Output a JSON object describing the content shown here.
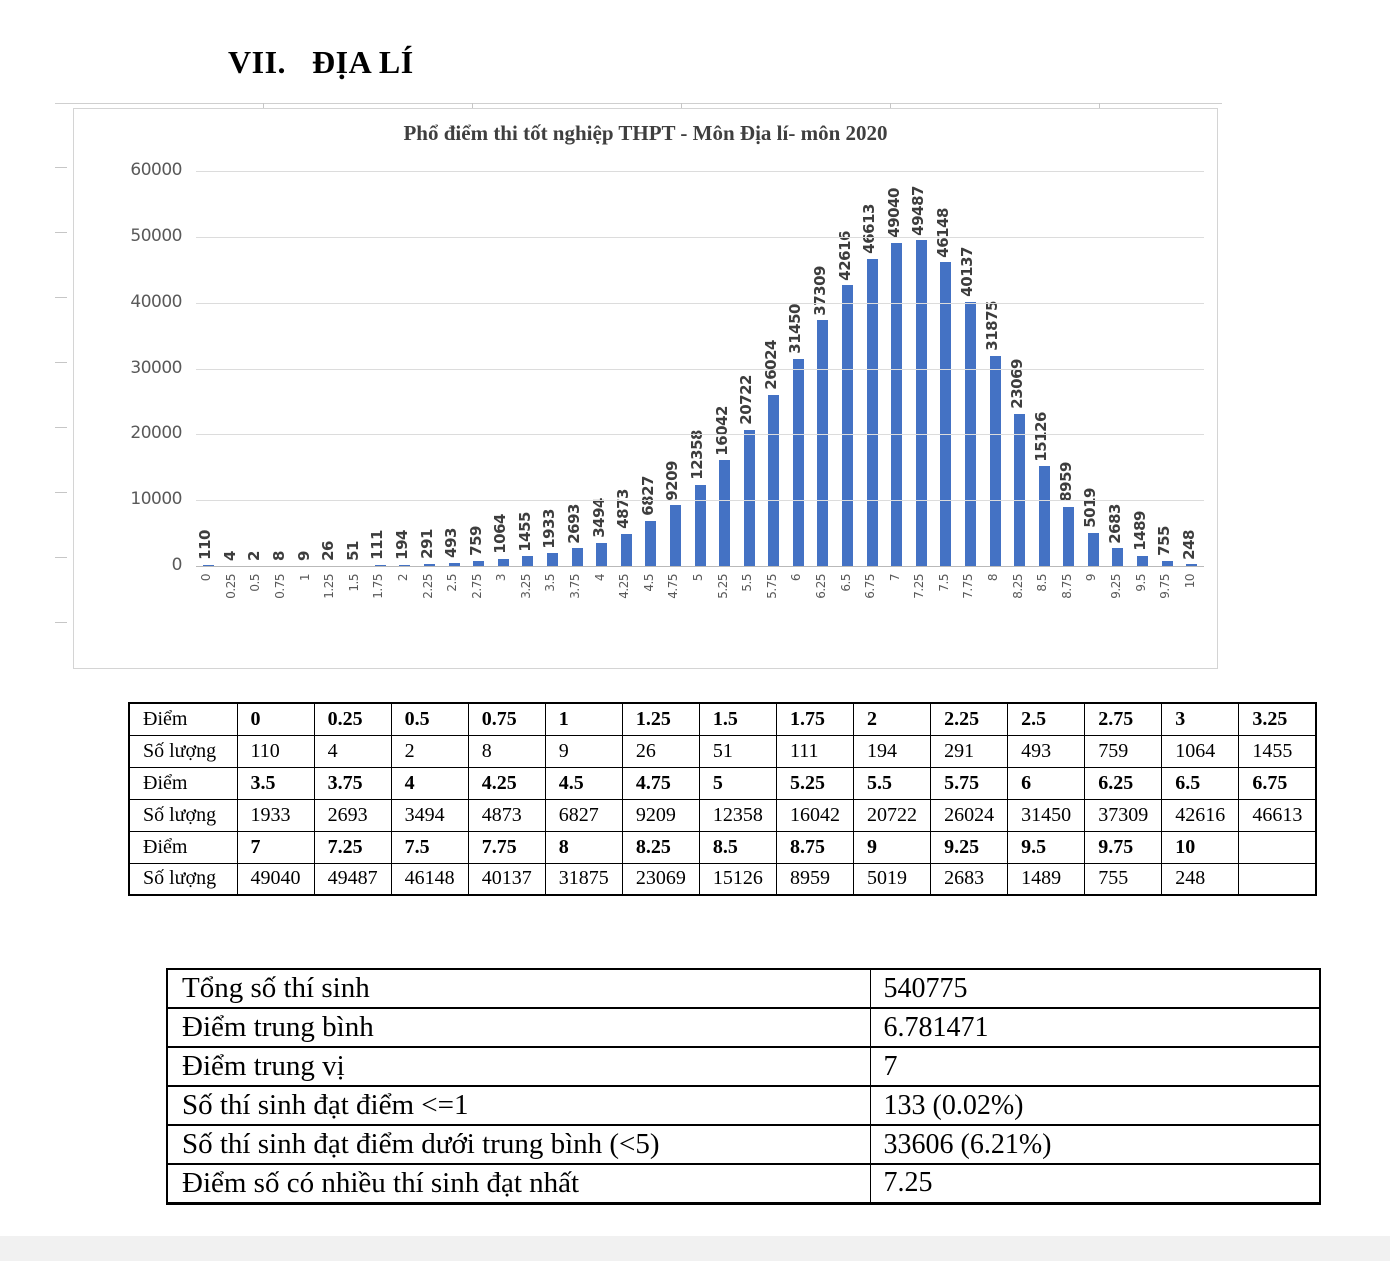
{
  "heading": {
    "number": "VII.",
    "title": "ĐỊA LÍ"
  },
  "chart_data": {
    "type": "bar",
    "title": "Phổ điểm thi tốt nghiệp THPT - Môn Địa lí- môn 2020",
    "categories": [
      "0",
      "0.25",
      "0.5",
      "0.75",
      "1",
      "1.25",
      "1.5",
      "1.75",
      "2",
      "2.25",
      "2.5",
      "2.75",
      "3",
      "3.25",
      "3.5",
      "3.75",
      "4",
      "4.25",
      "4.5",
      "4.75",
      "5",
      "5.25",
      "5.5",
      "5.75",
      "6",
      "6.25",
      "6.5",
      "6.75",
      "7",
      "7.25",
      "7.5",
      "7.75",
      "8",
      "8.25",
      "8.5",
      "8.75",
      "9",
      "9.25",
      "9.5",
      "9.75",
      "10"
    ],
    "values": [
      110,
      4,
      2,
      8,
      9,
      26,
      51,
      111,
      194,
      291,
      493,
      759,
      1064,
      1455,
      1933,
      2693,
      3494,
      4873,
      6827,
      9209,
      12358,
      16042,
      20722,
      26024,
      31450,
      37309,
      42616,
      46613,
      49040,
      49487,
      46148,
      40137,
      31875,
      23069,
      15126,
      8959,
      5019,
      2683,
      1489,
      755,
      248
    ],
    "xlabel": "",
    "ylabel": "",
    "ylim": [
      0,
      60000
    ],
    "ytick_step": 10000,
    "grid": true,
    "legend": false,
    "bar_color": "#4472C4",
    "data_labels_rotated": true
  },
  "score_table": {
    "row_label_score": "Điểm",
    "row_label_count": "Số lượng",
    "groups": [
      {
        "scores": [
          "0",
          "0.25",
          "0.5",
          "0.75",
          "1",
          "1.25",
          "1.5",
          "1.75",
          "2",
          "2.25",
          "2.5",
          "2.75",
          "3",
          "3.25"
        ],
        "counts": [
          "110",
          "4",
          "2",
          "8",
          "9",
          "26",
          "51",
          "111",
          "194",
          "291",
          "493",
          "759",
          "1064",
          "1455"
        ]
      },
      {
        "scores": [
          "3.5",
          "3.75",
          "4",
          "4.25",
          "4.5",
          "4.75",
          "5",
          "5.25",
          "5.5",
          "5.75",
          "6",
          "6.25",
          "6.5",
          "6.75"
        ],
        "counts": [
          "1933",
          "2693",
          "3494",
          "4873",
          "6827",
          "9209",
          "12358",
          "16042",
          "20722",
          "26024",
          "31450",
          "37309",
          "42616",
          "46613"
        ]
      },
      {
        "scores": [
          "7",
          "7.25",
          "7.5",
          "7.75",
          "8",
          "8.25",
          "8.5",
          "8.75",
          "9",
          "9.25",
          "9.5",
          "9.75",
          "10",
          ""
        ],
        "counts": [
          "49040",
          "49487",
          "46148",
          "40137",
          "31875",
          "23069",
          "15126",
          "8959",
          "5019",
          "2683",
          "1489",
          "755",
          "248",
          ""
        ]
      }
    ]
  },
  "summary_table": {
    "rows": [
      {
        "label": "Tổng số thí sinh",
        "value": "540775"
      },
      {
        "label": "Điểm trung bình",
        "value": "6.781471"
      },
      {
        "label": "Điểm trung vị",
        "value": "7"
      },
      {
        "label": "Số thí sinh đạt điểm <=1",
        "value": "133 (0.02%)"
      },
      {
        "label": "Số thí sinh đạt điểm dưới trung bình (<5)",
        "value": "33606 (6.21%)"
      },
      {
        "label": "Điểm số có nhiều thí sinh đạt nhất",
        "value": "7.25"
      }
    ]
  }
}
